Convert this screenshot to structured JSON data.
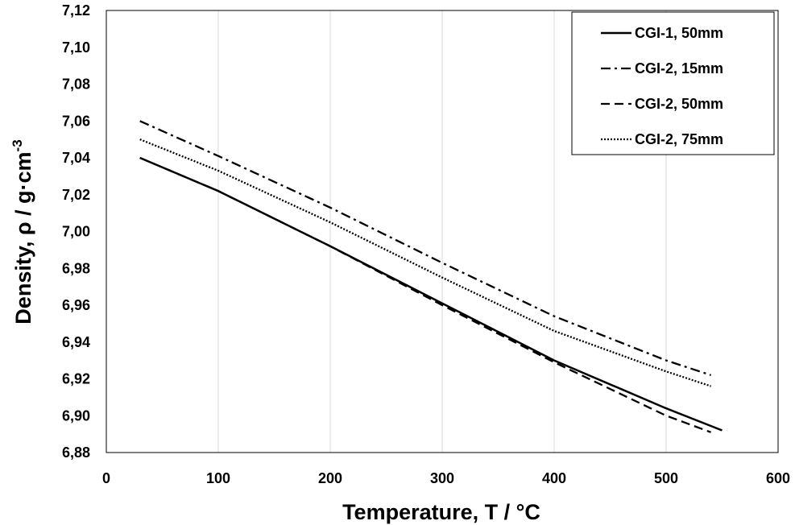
{
  "chart_data": {
    "type": "line",
    "title": "",
    "xlabel": "Temperature, T / °C",
    "ylabel_main": "Density, ρ / g·cm",
    "ylabel_sup": "-3",
    "xlim": [
      0,
      600
    ],
    "ylim": [
      6.88,
      7.12
    ],
    "xticks": [
      0,
      100,
      200,
      300,
      400,
      500,
      600
    ],
    "yticks": [
      6.88,
      6.9,
      6.92,
      6.94,
      6.96,
      6.98,
      7.0,
      7.02,
      7.04,
      7.06,
      7.08,
      7.1,
      7.12
    ],
    "decimal_separator": ",",
    "grid": "vertical",
    "legend_position": "top-right",
    "series": [
      {
        "name": "CGI-1, 50mm",
        "style": "solid",
        "x": [
          30,
          100,
          200,
          300,
          400,
          500,
          550
        ],
        "y": [
          7.04,
          7.022,
          6.992,
          6.961,
          6.93,
          6.904,
          6.892
        ]
      },
      {
        "name": "CGI-2, 15mm",
        "style": "dashdot",
        "x": [
          30,
          100,
          200,
          300,
          400,
          500,
          540
        ],
        "y": [
          7.06,
          7.041,
          7.013,
          6.983,
          6.954,
          6.93,
          6.922
        ]
      },
      {
        "name": "CGI-2, 50mm",
        "style": "dashed",
        "x": [
          30,
          100,
          200,
          300,
          400,
          500,
          540
        ],
        "y": [
          7.04,
          7.022,
          6.992,
          6.96,
          6.929,
          6.9,
          6.891
        ]
      },
      {
        "name": "CGI-2, 75mm",
        "style": "dotted",
        "x": [
          30,
          100,
          200,
          300,
          400,
          500,
          540
        ],
        "y": [
          7.05,
          7.033,
          7.005,
          6.975,
          6.946,
          6.924,
          6.916
        ]
      }
    ]
  }
}
